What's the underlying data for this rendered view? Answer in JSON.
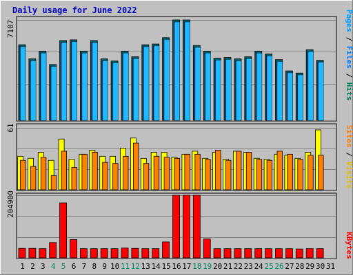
{
  "chart_data": [
    {
      "type": "bar",
      "title": "Daily usage for June 2022",
      "categories": [
        "1",
        "2",
        "3",
        "4",
        "5",
        "6",
        "7",
        "8",
        "9",
        "10",
        "11",
        "12",
        "13",
        "14",
        "15",
        "16",
        "17",
        "18",
        "19",
        "20",
        "21",
        "22",
        "23",
        "24",
        "25",
        "26",
        "27",
        "28",
        "29",
        "30",
        "31"
      ],
      "y_max_label": "7107",
      "ylim": [
        0,
        7107
      ],
      "grid": true,
      "series": [
        {
          "name": "Hits",
          "color": "#00c0ff",
          "values": [
            5350,
            4350,
            4900,
            3950,
            5650,
            5700,
            4900,
            5650,
            4350,
            4200,
            4900,
            4500,
            5350,
            5400,
            5850,
            7107,
            7107,
            5300,
            4900,
            4400,
            4450,
            4350,
            4500,
            4900,
            4700,
            4300,
            3500,
            3350,
            5000,
            4250,
            null
          ]
        },
        {
          "name": "Files",
          "color": "#0080ff",
          "values": [
            5300,
            4300,
            4850,
            3900,
            5600,
            5650,
            4850,
            5600,
            4300,
            4150,
            4850,
            4450,
            5300,
            5350,
            5800,
            7050,
            7050,
            5250,
            4850,
            4350,
            4400,
            4300,
            4450,
            4850,
            4650,
            4250,
            3450,
            3300,
            4950,
            4200,
            null
          ]
        },
        {
          "name": "Pages",
          "color": "#00a0ff",
          "values": [
            5300,
            4300,
            4850,
            3900,
            5600,
            5650,
            4850,
            5600,
            4300,
            4150,
            4850,
            4450,
            5300,
            5350,
            5800,
            7050,
            7050,
            5250,
            4850,
            4350,
            4400,
            4300,
            4450,
            4850,
            4650,
            4250,
            3450,
            3300,
            4950,
            4200,
            null
          ]
        }
      ]
    },
    {
      "type": "bar",
      "categories": [
        "1",
        "2",
        "3",
        "4",
        "5",
        "6",
        "7",
        "8",
        "9",
        "10",
        "11",
        "12",
        "13",
        "14",
        "15",
        "16",
        "17",
        "18",
        "19",
        "20",
        "21",
        "22",
        "23",
        "24",
        "25",
        "26",
        "27",
        "28",
        "29",
        "30",
        "31"
      ],
      "y_max_label": "61",
      "ylim": [
        0,
        61
      ],
      "grid": true,
      "series": [
        {
          "name": "Visits",
          "color": "#ffff00",
          "values": [
            33,
            31,
            37,
            29,
            50,
            30,
            35,
            39,
            33,
            33,
            41,
            51,
            31,
            37,
            37,
            32,
            35,
            38,
            31,
            37,
            30,
            38,
            37,
            31,
            30,
            35,
            34,
            31,
            37,
            59,
            null
          ]
        },
        {
          "name": "Sites",
          "color": "#ff8000",
          "values": [
            29,
            23,
            32,
            14,
            38,
            22,
            35,
            37,
            27,
            26,
            33,
            46,
            26,
            33,
            32,
            31,
            35,
            35,
            30,
            39,
            29,
            38,
            37,
            30,
            29,
            38,
            35,
            30,
            34,
            34,
            null
          ]
        }
      ]
    },
    {
      "type": "bar",
      "categories": [
        "1",
        "2",
        "3",
        "4",
        "5",
        "6",
        "7",
        "8",
        "9",
        "10",
        "11",
        "12",
        "13",
        "14",
        "15",
        "16",
        "17",
        "18",
        "19",
        "20",
        "21",
        "22",
        "23",
        "24",
        "25",
        "26",
        "27",
        "28",
        "29",
        "30",
        "31"
      ],
      "y_max_label": "204900",
      "ylim": [
        0,
        204900
      ],
      "grid": true,
      "series": [
        {
          "name": "KBytes",
          "color": "#ff0000",
          "values": [
            31000,
            31000,
            30000,
            50000,
            180000,
            60000,
            30000,
            30000,
            30000,
            30000,
            32000,
            31000,
            30000,
            30000,
            52000,
            204900,
            204900,
            204900,
            62000,
            30000,
            30000,
            30000,
            30000,
            30000,
            30000,
            30000,
            30000,
            29000,
            30000,
            30000,
            null
          ]
        }
      ]
    }
  ],
  "x_tick_colors": {
    "default": "#000000",
    "weekend": "#00805c",
    "weekend_days": [
      "4",
      "5",
      "11",
      "12",
      "18",
      "19",
      "25",
      "26"
    ]
  },
  "side_labels": {
    "top": [
      {
        "text": "Pages",
        "color": "#00a0ff"
      },
      {
        "text": " / ",
        "color": "#000000"
      },
      {
        "text": "Files",
        "color": "#0080ff"
      },
      {
        "text": " / ",
        "color": "#000000"
      },
      {
        "text": "Hits",
        "color": "#00805c"
      }
    ],
    "mid": [
      {
        "text": "Sites",
        "color": "#ff8000"
      },
      {
        "text": " / ",
        "color": "#000000"
      },
      {
        "text": "Visits",
        "color": "#e0c000"
      }
    ],
    "bot": [
      {
        "text": "KBytes",
        "color": "#ff0000"
      }
    ]
  }
}
